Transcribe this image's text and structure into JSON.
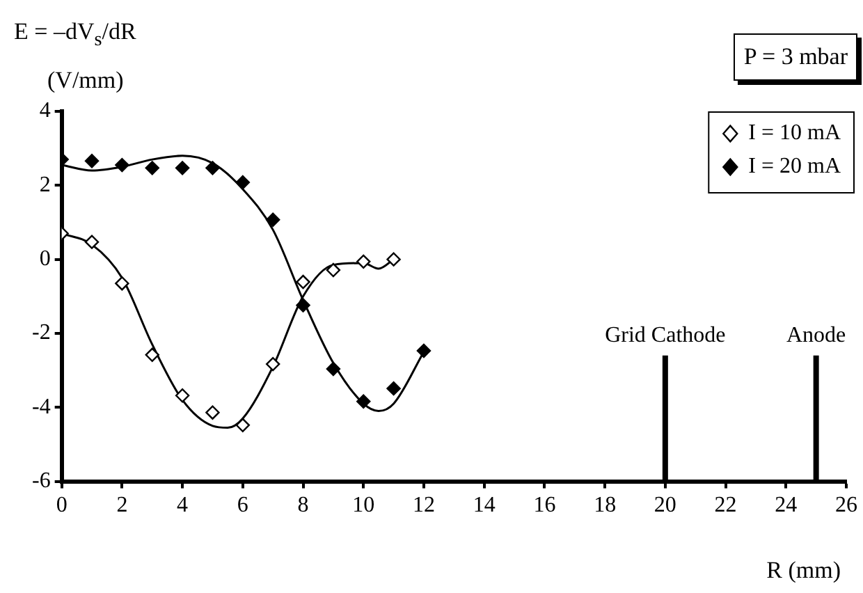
{
  "chart_data": {
    "type": "scatter",
    "ylabel": "E = –dV$_{s}$/dR (V/mm)",
    "xlabel": "R (mm)",
    "annotations": [
      "P = 3 mbar"
    ],
    "xlim": [
      0,
      26
    ],
    "xticks": [
      0,
      2,
      4,
      6,
      8,
      10,
      12,
      14,
      16,
      18,
      20,
      22,
      24,
      26
    ],
    "ylim": [
      -6,
      4
    ],
    "yticks": [
      -6,
      -4,
      -2,
      0,
      2,
      4
    ],
    "grid": false,
    "legend": "top right",
    "marker": "diamond",
    "series": [
      {
        "name": "I = 10 mA",
        "color": "#ffffff",
        "x": [
          0,
          1,
          2,
          3,
          4,
          5,
          6,
          7,
          8,
          9,
          10,
          11
        ],
        "values": [
          0.7,
          0.47,
          -0.65,
          -2.58,
          -3.68,
          -4.14,
          -4.48,
          -2.83,
          -0.61,
          -0.29,
          -0.06,
          0.0
        ]
      },
      {
        "name": "I = 20 mA",
        "color": "#000000",
        "x": [
          0,
          1,
          2,
          3,
          4,
          5,
          6,
          7,
          8,
          9,
          10,
          11,
          12
        ],
        "values": [
          2.7,
          2.66,
          2.55,
          2.47,
          2.47,
          2.47,
          2.08,
          1.07,
          -1.24,
          -2.96,
          -3.84,
          -3.49,
          -2.47
        ]
      },
      {
        "type": "line",
        "color": "#000000",
        "marker": "none",
        "x": [
          0,
          1,
          2,
          3,
          4,
          5,
          5.5,
          6,
          7,
          8,
          9,
          10,
          10.5,
          11
        ],
        "values": [
          0.7,
          0.4,
          -0.5,
          -2.3,
          -3.8,
          -4.5,
          -4.55,
          -4.3,
          -2.9,
          -1.0,
          -0.15,
          -0.1,
          -0.25,
          0.0
        ]
      },
      {
        "type": "line",
        "color": "#000000",
        "marker": "none",
        "x": [
          0,
          1,
          2,
          3,
          4,
          5,
          6,
          7,
          8,
          9,
          10,
          10.5,
          11,
          12
        ],
        "values": [
          2.55,
          2.4,
          2.5,
          2.7,
          2.8,
          2.6,
          1.9,
          0.8,
          -1.1,
          -2.8,
          -3.9,
          -4.1,
          -3.9,
          -2.5
        ]
      }
    ],
    "ref_lines": [
      {
        "axis": "x",
        "value": 20,
        "label": "Grid Cathode",
        "color": "#000000"
      },
      {
        "axis": "x",
        "value": 25,
        "label": "Anode",
        "color": "#000000"
      }
    ]
  }
}
